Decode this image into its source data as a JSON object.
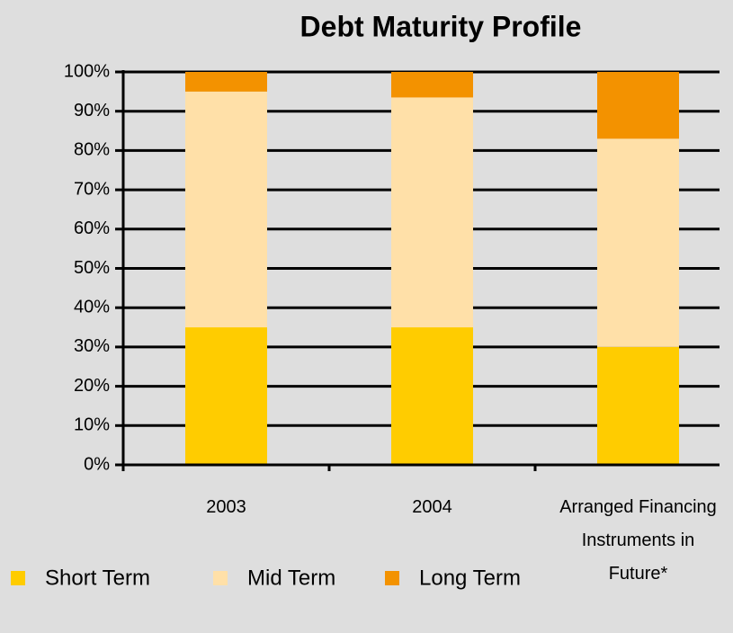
{
  "chart_data": {
    "type": "bar",
    "stacked": true,
    "title": "Debt Maturity Profile",
    "categories": [
      "2003",
      "2004",
      "Arranged Financing Instruments in Future*"
    ],
    "series": [
      {
        "name": "Short Term",
        "color": "#ffcc00",
        "values": [
          35,
          35,
          30
        ]
      },
      {
        "name": "Mid Term",
        "color": "#ffe0a8",
        "values": [
          60,
          58.5,
          53
        ]
      },
      {
        "name": "Long Term",
        "color": "#f39200",
        "values": [
          5,
          6.5,
          17
        ]
      }
    ],
    "ylim": [
      0,
      100
    ],
    "yticks": [
      {
        "value": 0,
        "label": "0%"
      },
      {
        "value": 10,
        "label": "10%"
      },
      {
        "value": 20,
        "label": "20%"
      },
      {
        "value": 30,
        "label": "30%"
      },
      {
        "value": 40,
        "label": "40%"
      },
      {
        "value": 50,
        "label": "50%"
      },
      {
        "value": 60,
        "label": "60%"
      },
      {
        "value": 70,
        "label": "70%"
      },
      {
        "value": 80,
        "label": "80%"
      },
      {
        "value": 90,
        "label": "90%"
      },
      {
        "value": 100,
        "label": "100%"
      }
    ],
    "grid": true,
    "legend": "bottom"
  }
}
